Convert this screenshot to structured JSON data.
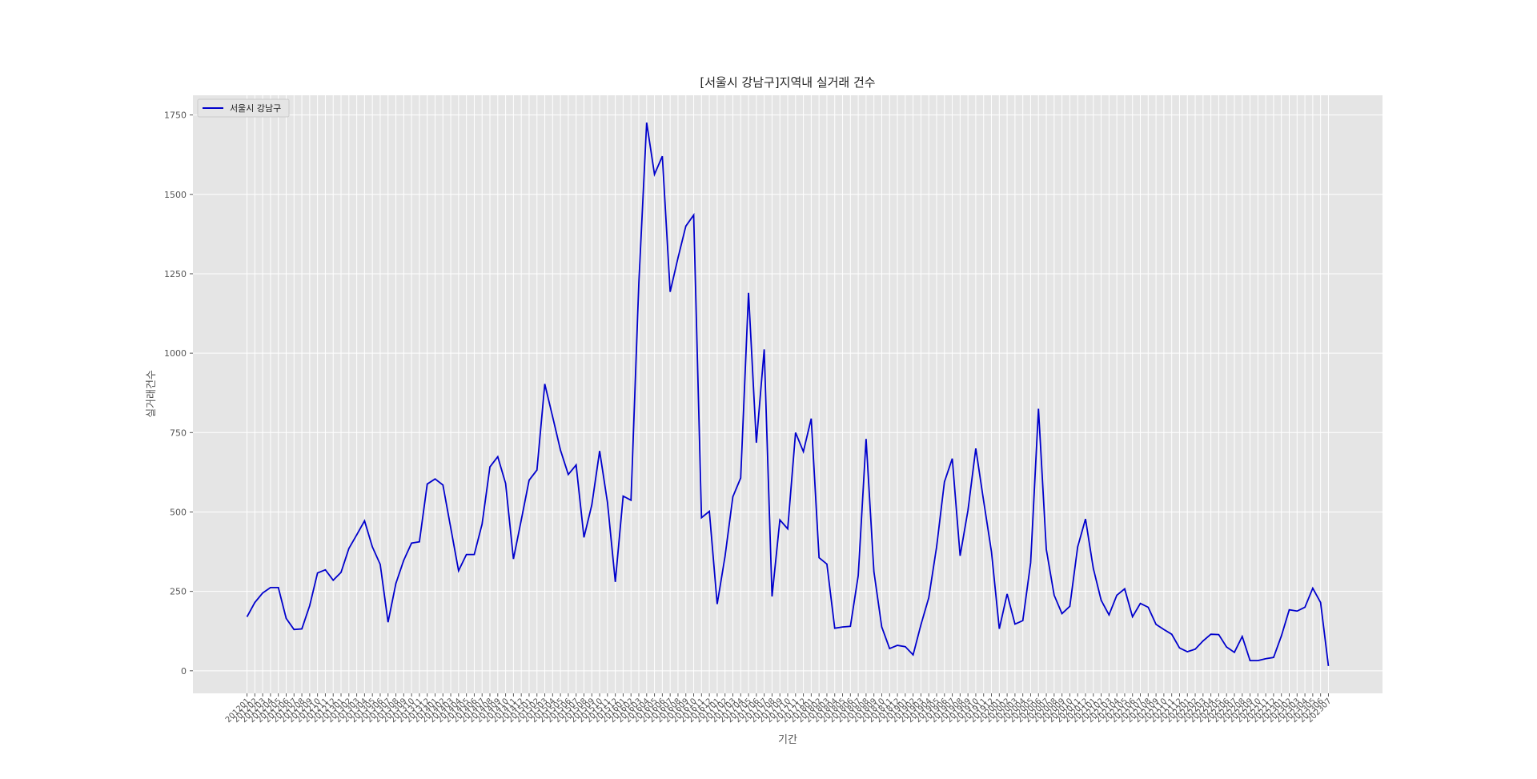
{
  "chart_data": {
    "type": "line",
    "title": "[서울시 강남구]지역내 실거래 건수",
    "x_label": "기간",
    "y_label": "실거래건수",
    "categories": [
      "201201",
      "201202",
      "201203",
      "201204",
      "201205",
      "201206",
      "201207",
      "201208",
      "201209",
      "201210",
      "201211",
      "201212",
      "201301",
      "201302",
      "201303",
      "201304",
      "201305",
      "201306",
      "201307",
      "201308",
      "201309",
      "201310",
      "201311",
      "201312",
      "201401",
      "201402",
      "201403",
      "201404",
      "201405",
      "201406",
      "201407",
      "201408",
      "201409",
      "201410",
      "201411",
      "201412",
      "201501",
      "201502",
      "201503",
      "201504",
      "201505",
      "201506",
      "201507",
      "201508",
      "201509",
      "201510",
      "201511",
      "201512",
      "201601",
      "201602",
      "201603",
      "201604",
      "201605",
      "201606",
      "201607",
      "201608",
      "201609",
      "201610",
      "201611",
      "201612",
      "201701",
      "201702",
      "201703",
      "201704",
      "201705",
      "201706",
      "201707",
      "201708",
      "201709",
      "201710",
      "201711",
      "201712",
      "201801",
      "201802",
      "201803",
      "201804",
      "201805",
      "201806",
      "201807",
      "201808",
      "201809",
      "201810",
      "201811",
      "201812",
      "201901",
      "201902",
      "201903",
      "201904",
      "201905",
      "201906",
      "201907",
      "201908",
      "201909",
      "201910",
      "201911",
      "201912",
      "202001",
      "202002",
      "202003",
      "202004",
      "202005",
      "202006",
      "202007",
      "202008",
      "202009",
      "202010",
      "202011",
      "202012",
      "202101",
      "202102",
      "202103",
      "202104",
      "202105",
      "202106",
      "202107",
      "202108",
      "202109",
      "202110",
      "202111",
      "202112",
      "202201",
      "202202",
      "202203",
      "202204",
      "202205",
      "202206",
      "202207",
      "202208",
      "202209",
      "202210",
      "202211",
      "202212",
      "202301",
      "202302",
      "202303",
      "202304",
      "202305",
      "202306",
      "202307"
    ],
    "series": [
      {
        "name": "서울시 강남구",
        "color": "#0000cc",
        "values": [
          170,
          215,
          245,
          262,
          262,
          165,
          130,
          132,
          205,
          308,
          318,
          285,
          310,
          385,
          428,
          472,
          390,
          335,
          153,
          275,
          348,
          402,
          406,
          588,
          604,
          585,
          450,
          315,
          366,
          366,
          462,
          642,
          674,
          590,
          352,
          475,
          600,
          632,
          903,
          800,
          695,
          618,
          648,
          420,
          522,
          692,
          530,
          280,
          550,
          537,
          1220,
          1726,
          1563,
          1620,
          1193,
          1300,
          1400,
          1435,
          482,
          502,
          210,
          360,
          548,
          607,
          1190,
          718,
          1012,
          234,
          475,
          447,
          750,
          690,
          794,
          356,
          336,
          134,
          138,
          140,
          300,
          730,
          312,
          138,
          70,
          80,
          76,
          50,
          145,
          230,
          390,
          595,
          668,
          362,
          505,
          700,
          535,
          375,
          132,
          242,
          147,
          158,
          340,
          825,
          382,
          238,
          180,
          203,
          390,
          478,
          322,
          222,
          176,
          238,
          258,
          170,
          212,
          200,
          146,
          130,
          115,
          72,
          60,
          68,
          94,
          115,
          114,
          75,
          58,
          108,
          32,
          32,
          38,
          42,
          110,
          192,
          188,
          200,
          260,
          215,
          15
        ]
      }
    ],
    "ylim": [
      -71,
      1812
    ],
    "yticks": [
      0,
      250,
      500,
      750,
      1000,
      1250,
      1500,
      1750
    ],
    "grid": true,
    "legend": "upper left"
  }
}
